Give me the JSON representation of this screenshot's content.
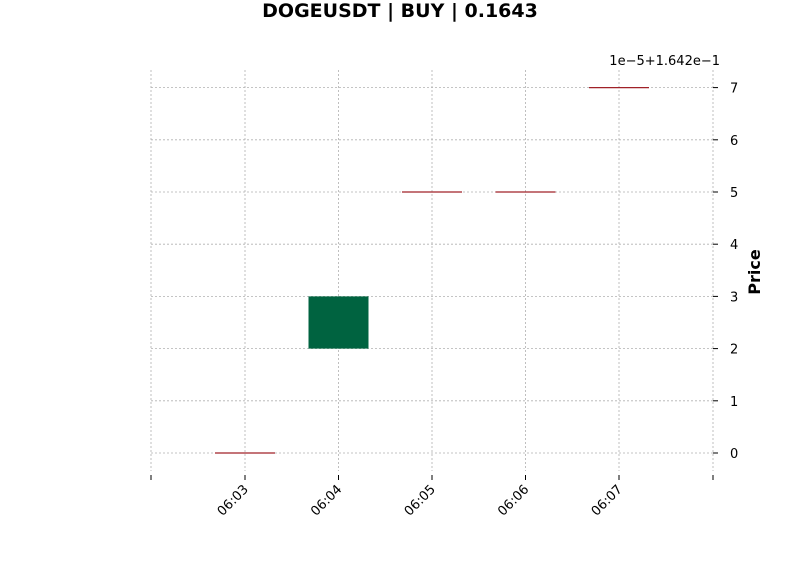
{
  "chart_data": {
    "type": "candlestick",
    "title": "DOGEUSDT | BUY | 0.1643",
    "ylabel": "Price",
    "y_offset_label": "1e−5+1.642e−1",
    "y_offset_value": 0.1642,
    "y_scale": 1e-05,
    "ylim": [
      -0.35,
      7.35
    ],
    "yticks": [
      0,
      1,
      2,
      3,
      4,
      5,
      6,
      7
    ],
    "y_tick_labels": [
      "0",
      "1",
      "2",
      "3",
      "4",
      "5",
      "6",
      "7"
    ],
    "x_tick_labels": [
      "06:03",
      "06:04",
      "06:05",
      "06:06",
      "06:07"
    ],
    "grid": true,
    "up_color": "#006340",
    "down_color": "#a02128",
    "candles": [
      {
        "time": "06:03",
        "open": 0.1642,
        "high": 0.1642,
        "low": 0.1642,
        "close": 0.1642
      },
      {
        "time": "06:04",
        "open": 0.16422,
        "high": 0.16423,
        "low": 0.16422,
        "close": 0.16423
      },
      {
        "time": "06:05",
        "open": 0.16425,
        "high": 0.16425,
        "low": 0.16425,
        "close": 0.16425
      },
      {
        "time": "06:06",
        "open": 0.16425,
        "high": 0.16425,
        "low": 0.16425,
        "close": 0.16425
      },
      {
        "time": "06:07",
        "open": 0.16427,
        "high": 0.16427,
        "low": 0.16427,
        "close": 0.16427
      }
    ]
  }
}
